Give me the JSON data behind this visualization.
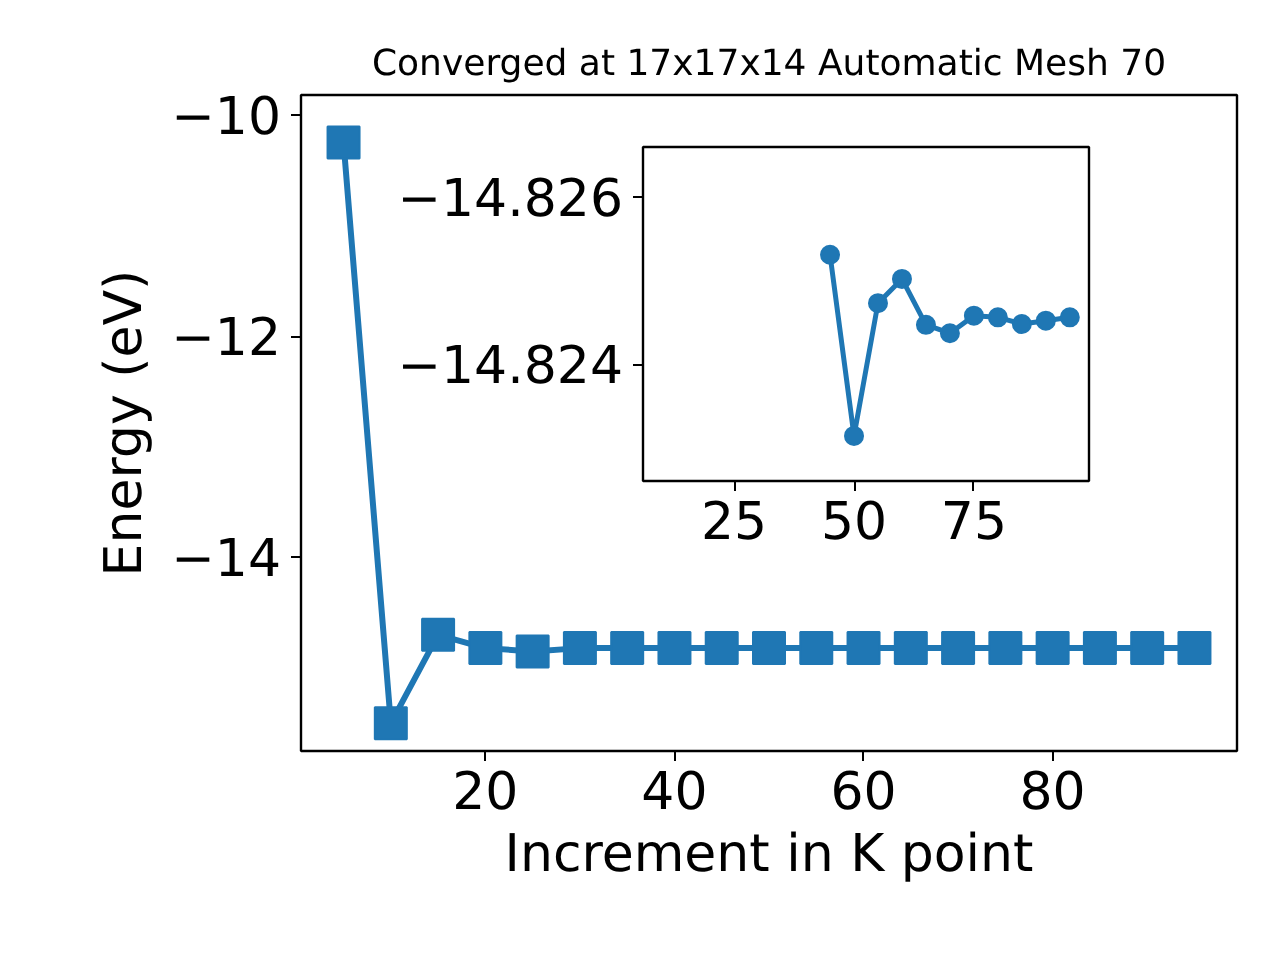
{
  "chart_data": [
    {
      "type": "line",
      "title": "Converged at 17x17x14 Automatic Mesh 70",
      "xlabel": "Increment in K point",
      "ylabel": "Energy (eV)",
      "marker": "square",
      "color": "#1f77b4",
      "x": [
        5,
        10,
        15,
        20,
        25,
        30,
        35,
        40,
        45,
        50,
        55,
        60,
        65,
        70,
        75,
        80,
        85,
        90,
        95
      ],
      "values": [
        -10.25,
        -15.5,
        -14.7,
        -14.82,
        -14.85,
        -14.82,
        -14.82,
        -14.82,
        -14.82,
        -14.82,
        -14.82,
        -14.82,
        -14.82,
        -14.82,
        -14.82,
        -14.82,
        -14.82,
        -14.82,
        -14.82
      ],
      "xlim": [
        0.5,
        99.5
      ],
      "ylim": [
        -15.75,
        -9.82
      ],
      "xticks": [
        20,
        40,
        60,
        80
      ],
      "yticks": [
        {
          "value": -14,
          "label": "−14"
        },
        {
          "value": -12,
          "label": "−12"
        },
        {
          "value": -10,
          "label": "−10"
        }
      ]
    },
    {
      "type": "line",
      "marker": "circle",
      "color": "#1f77b4",
      "x": [
        45,
        50,
        55,
        60,
        65,
        70,
        75,
        80,
        85,
        90,
        95
      ],
      "values": [
        -14.82531,
        -14.82314,
        -14.82473,
        -14.82502,
        -14.82447,
        -14.82437,
        -14.82458,
        -14.82456,
        -14.82448,
        -14.82452,
        -14.82456
      ],
      "xlim": [
        6,
        99
      ],
      "ylim": [
        -14.8226,
        -14.8266
      ],
      "xticks": [
        25,
        50,
        75
      ],
      "yticks": [
        {
          "value": -14.826,
          "label": "−14.826"
        },
        {
          "value": -14.824,
          "label": "−14.824"
        }
      ]
    }
  ]
}
